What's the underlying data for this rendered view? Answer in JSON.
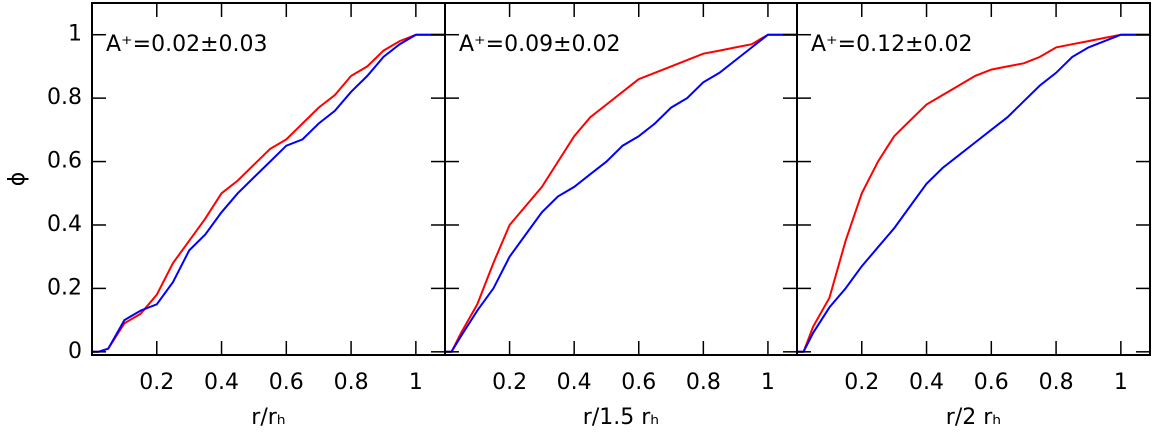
{
  "chart_data": [
    {
      "type": "line",
      "annotation": "A⁺=0.02±0.03",
      "xlabel": "r/rₕ",
      "ylabel": "ϕ",
      "ytick_labels": true,
      "xlim": [
        0,
        1.09
      ],
      "ylim": [
        -0.01,
        1.1
      ],
      "xticks": [
        0.2,
        0.4,
        0.6,
        0.8,
        1
      ],
      "yticks": [
        0,
        0.2,
        0.4,
        0.6,
        0.8,
        1
      ],
      "x": [
        0,
        0.02,
        0.05,
        0.1,
        0.15,
        0.2,
        0.25,
        0.3,
        0.35,
        0.4,
        0.45,
        0.5,
        0.55,
        0.6,
        0.65,
        0.7,
        0.75,
        0.8,
        0.85,
        0.9,
        0.95,
        1.0,
        1.09
      ],
      "series": [
        {
          "color": "#ff0000",
          "values": [
            0,
            0,
            0.01,
            0.09,
            0.12,
            0.18,
            0.28,
            0.35,
            0.42,
            0.5,
            0.54,
            0.59,
            0.64,
            0.67,
            0.72,
            0.77,
            0.81,
            0.87,
            0.9,
            0.95,
            0.98,
            1,
            1
          ]
        },
        {
          "color": "#0000ff",
          "values": [
            0,
            0,
            0.01,
            0.1,
            0.13,
            0.15,
            0.22,
            0.32,
            0.37,
            0.44,
            0.5,
            0.55,
            0.6,
            0.65,
            0.67,
            0.72,
            0.76,
            0.82,
            0.87,
            0.93,
            0.97,
            1,
            1
          ]
        }
      ]
    },
    {
      "type": "line",
      "annotation": "A⁺=0.09±0.02",
      "xlabel": "r/1.5 rₕ",
      "ytick_labels": false,
      "xlim": [
        0,
        1.09
      ],
      "ylim": [
        -0.01,
        1.1
      ],
      "xticks": [
        0.2,
        0.4,
        0.6,
        0.8,
        1
      ],
      "yticks": [
        0,
        0.2,
        0.4,
        0.6,
        0.8,
        1
      ],
      "x": [
        0,
        0.02,
        0.05,
        0.1,
        0.15,
        0.2,
        0.25,
        0.3,
        0.35,
        0.4,
        0.45,
        0.5,
        0.55,
        0.6,
        0.65,
        0.7,
        0.75,
        0.8,
        0.85,
        0.9,
        0.95,
        1.0,
        1.09
      ],
      "series": [
        {
          "color": "#ff0000",
          "values": [
            0,
            0,
            0.06,
            0.15,
            0.28,
            0.4,
            0.46,
            0.52,
            0.6,
            0.68,
            0.74,
            0.78,
            0.82,
            0.86,
            0.88,
            0.9,
            0.92,
            0.94,
            0.95,
            0.96,
            0.97,
            1,
            1
          ]
        },
        {
          "color": "#0000ff",
          "values": [
            0,
            0,
            0.05,
            0.13,
            0.2,
            0.3,
            0.37,
            0.44,
            0.49,
            0.52,
            0.56,
            0.6,
            0.65,
            0.68,
            0.72,
            0.77,
            0.8,
            0.85,
            0.88,
            0.92,
            0.96,
            1,
            1
          ]
        }
      ]
    },
    {
      "type": "line",
      "annotation": "A⁺=0.12±0.02",
      "xlabel": "r/2 rₕ",
      "ytick_labels": false,
      "xlim": [
        0,
        1.09
      ],
      "ylim": [
        -0.01,
        1.1
      ],
      "xticks": [
        0.2,
        0.4,
        0.6,
        0.8,
        1
      ],
      "yticks": [
        0,
        0.2,
        0.4,
        0.6,
        0.8,
        1
      ],
      "x": [
        0,
        0.02,
        0.05,
        0.1,
        0.15,
        0.2,
        0.25,
        0.3,
        0.35,
        0.4,
        0.45,
        0.5,
        0.55,
        0.6,
        0.65,
        0.7,
        0.75,
        0.8,
        0.85,
        0.9,
        0.95,
        1.0,
        1.09
      ],
      "series": [
        {
          "color": "#ff0000",
          "values": [
            0,
            0,
            0.08,
            0.17,
            0.35,
            0.5,
            0.6,
            0.68,
            0.73,
            0.78,
            0.81,
            0.84,
            0.87,
            0.89,
            0.9,
            0.91,
            0.93,
            0.96,
            0.97,
            0.98,
            0.99,
            1,
            1
          ]
        },
        {
          "color": "#0000ff",
          "values": [
            0,
            0,
            0.06,
            0.14,
            0.2,
            0.27,
            0.33,
            0.39,
            0.46,
            0.53,
            0.58,
            0.62,
            0.66,
            0.7,
            0.74,
            0.79,
            0.84,
            0.88,
            0.93,
            0.96,
            0.98,
            1,
            1
          ]
        }
      ]
    }
  ]
}
